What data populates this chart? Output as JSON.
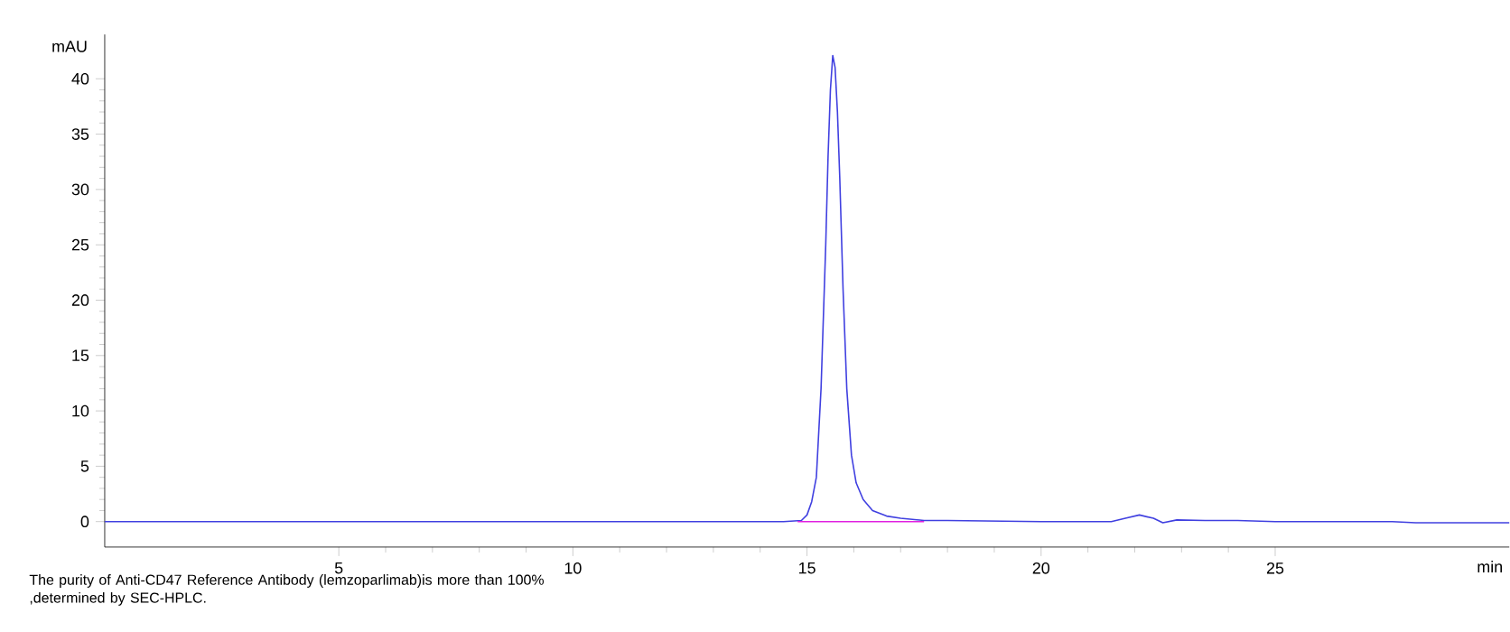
{
  "chart_data": {
    "type": "line",
    "xlabel": "min",
    "ylabel": "mAU",
    "xlim": [
      0,
      30
    ],
    "ylim": [
      -2.3,
      44
    ],
    "xticks": [
      5,
      10,
      15,
      20,
      25
    ],
    "yticks": [
      0,
      5,
      10,
      15,
      20,
      25,
      30,
      35,
      40
    ],
    "grid": false,
    "marker": "none",
    "line_style": "solid",
    "series": [
      {
        "color": "#4040e0",
        "x": [
          0,
          5,
          10,
          13,
          14.5,
          14.88,
          15.0,
          15.1,
          15.2,
          15.3,
          15.4,
          15.45,
          15.5,
          15.55,
          15.6,
          15.65,
          15.7,
          15.77,
          15.85,
          15.95,
          16.05,
          16.2,
          16.4,
          16.7,
          17.0,
          17.5,
          18,
          20,
          21.5,
          21.8,
          22.1,
          22.4,
          22.6,
          22.9,
          23.5,
          24.2,
          25,
          27.5,
          28,
          30
        ],
        "values": [
          0,
          0,
          0,
          0,
          0,
          0.1,
          0.6,
          1.8,
          4,
          12,
          25,
          33,
          39,
          42.1,
          41,
          37,
          31,
          21,
          12,
          6,
          3.5,
          2,
          1.0,
          0.5,
          0.3,
          0.1,
          0.1,
          0,
          0,
          0.3,
          0.6,
          0.3,
          -0.1,
          0.15,
          0.1,
          0.1,
          0,
          0,
          -0.1,
          -0.1
        ]
      },
      {
        "color": "#e020e0",
        "x": [
          14.8,
          17.5
        ],
        "values": [
          0,
          0
        ]
      }
    ],
    "annotations": [
      "The purity of Anti-CD47 Reference Antibody (lemzoparlimab)is more than 100% ,determined by SEC-HPLC."
    ]
  }
}
